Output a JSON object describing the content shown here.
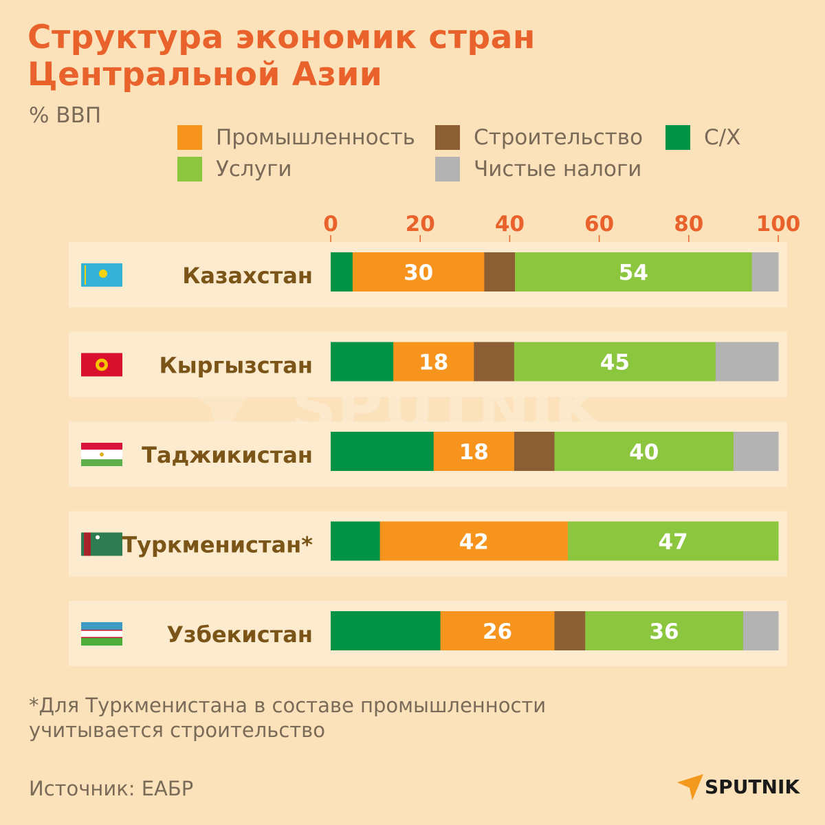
{
  "title_line1": "Структура экономик стран",
  "title_line2": "Центральной Азии",
  "unit": "% ВВП",
  "footnote_line1": "*Для Туркменистана в составе промышленности",
  "footnote_line2": "учитывается строительство",
  "source": "Источник: ЕАБР",
  "logo": "SPUTNIK",
  "watermark": "SPUTNIK",
  "colors": {
    "background": "#fbe2bb",
    "band": "#fdebd0",
    "title": "#e9622b",
    "label": "#7b5418",
    "axis": "#e9622b"
  },
  "chart_data": {
    "type": "bar",
    "orientation": "horizontal-stacked",
    "xlim": [
      0,
      100
    ],
    "xticks": [
      "0",
      "20",
      "40",
      "60",
      "80",
      "100"
    ],
    "legend_placement": "top",
    "legend": [
      {
        "key": "industry",
        "name": "Промышленность",
        "color": "#f7941d"
      },
      {
        "key": "construction",
        "name": "Строительство",
        "color": "#8b5e34"
      },
      {
        "key": "agriculture",
        "name": "С/Х",
        "color": "#009245"
      },
      {
        "key": "services",
        "name": "Услуги",
        "color": "#8cc63f"
      },
      {
        "key": "taxes",
        "name": "Чистые налоги",
        "color": "#b3b3b3"
      }
    ],
    "stack_order": [
      "agriculture",
      "industry",
      "construction",
      "services",
      "taxes"
    ],
    "categories": [
      {
        "name": "Казахстан",
        "flag": "kazakhstan-flag",
        "values": {
          "agriculture": 5,
          "industry": 30,
          "construction": 7,
          "services": 54,
          "taxes": 6
        },
        "labels": {
          "industry": "30",
          "services": "54"
        }
      },
      {
        "name": "Кыргызстан",
        "flag": "kyrgyzstan-flag",
        "values": {
          "agriculture": 14,
          "industry": 18,
          "construction": 9,
          "services": 45,
          "taxes": 14
        },
        "labels": {
          "industry": "18",
          "services": "45"
        }
      },
      {
        "name": "Таджикистан",
        "flag": "tajikistan-flag",
        "values": {
          "agriculture": 23,
          "industry": 18,
          "construction": 9,
          "services": 40,
          "taxes": 10
        },
        "labels": {
          "industry": "18",
          "services": "40"
        }
      },
      {
        "name": "Туркменистан*",
        "flag": "turkmenistan-flag",
        "values": {
          "agriculture": 11,
          "industry": 42,
          "construction": 0,
          "services": 47,
          "taxes": 0
        },
        "labels": {
          "industry": "42",
          "services": "47"
        }
      },
      {
        "name": "Узбекистан",
        "flag": "uzbekistan-flag",
        "values": {
          "agriculture": 25,
          "industry": 26,
          "construction": 7,
          "services": 36,
          "taxes": 8
        },
        "labels": {
          "industry": "26",
          "services": "36"
        }
      }
    ]
  }
}
